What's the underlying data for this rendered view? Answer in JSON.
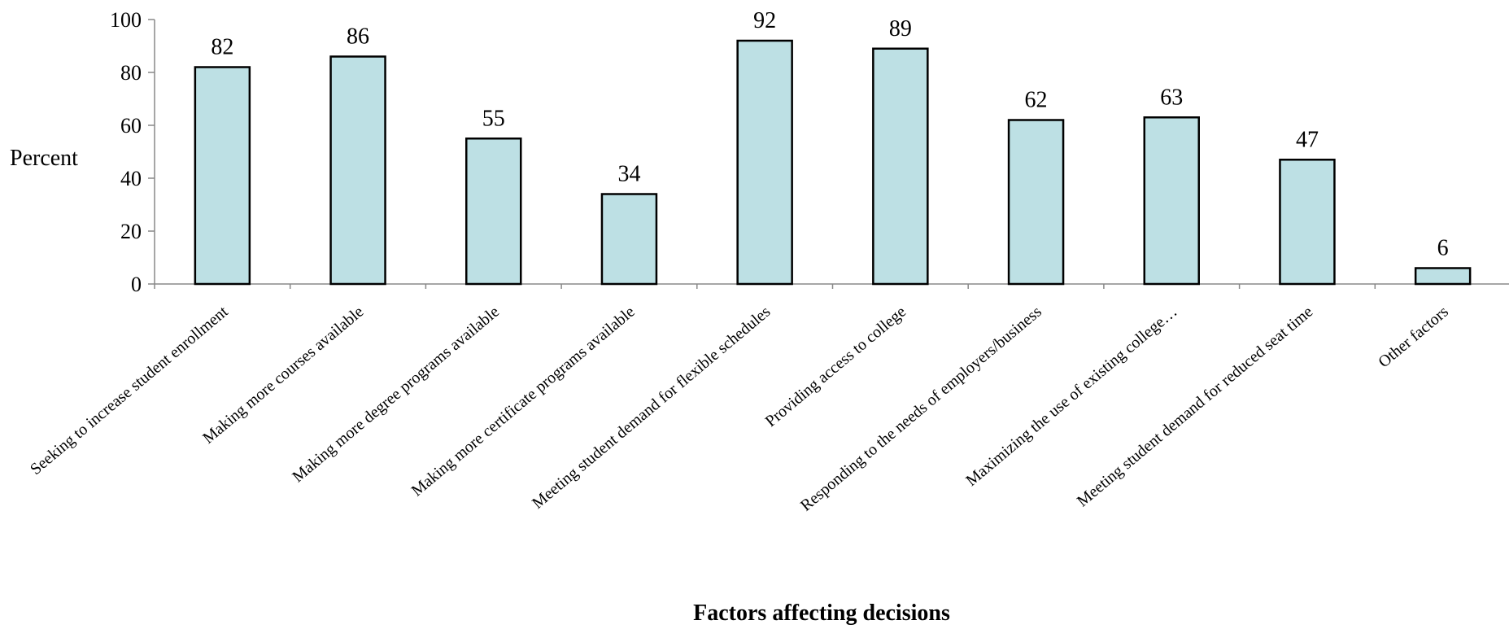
{
  "chart_data": {
    "type": "bar",
    "title": "",
    "xlabel": "Factors affecting decisions",
    "ylabel": "Percent",
    "ylim": [
      0,
      100
    ],
    "yticks": [
      0,
      20,
      40,
      60,
      80,
      100
    ],
    "grid": false,
    "legend": "none",
    "categories": [
      "Seeking to increase student enrollment",
      "Making more courses available",
      "Making more degree programs available",
      "Making more certificate programs available",
      "Meeting student demand for flexible schedules",
      "Providing access to college",
      "Responding to the needs of employers/business",
      "Maximizing the use of existing college…",
      "Meeting student demand for reduced seat time",
      "Other factors"
    ],
    "values": [
      82,
      86,
      55,
      34,
      92,
      89,
      62,
      63,
      47,
      6
    ],
    "colors": {
      "bar_fill": "#bde0e4",
      "bar_stroke": "#000000",
      "axis": "#888888"
    }
  }
}
